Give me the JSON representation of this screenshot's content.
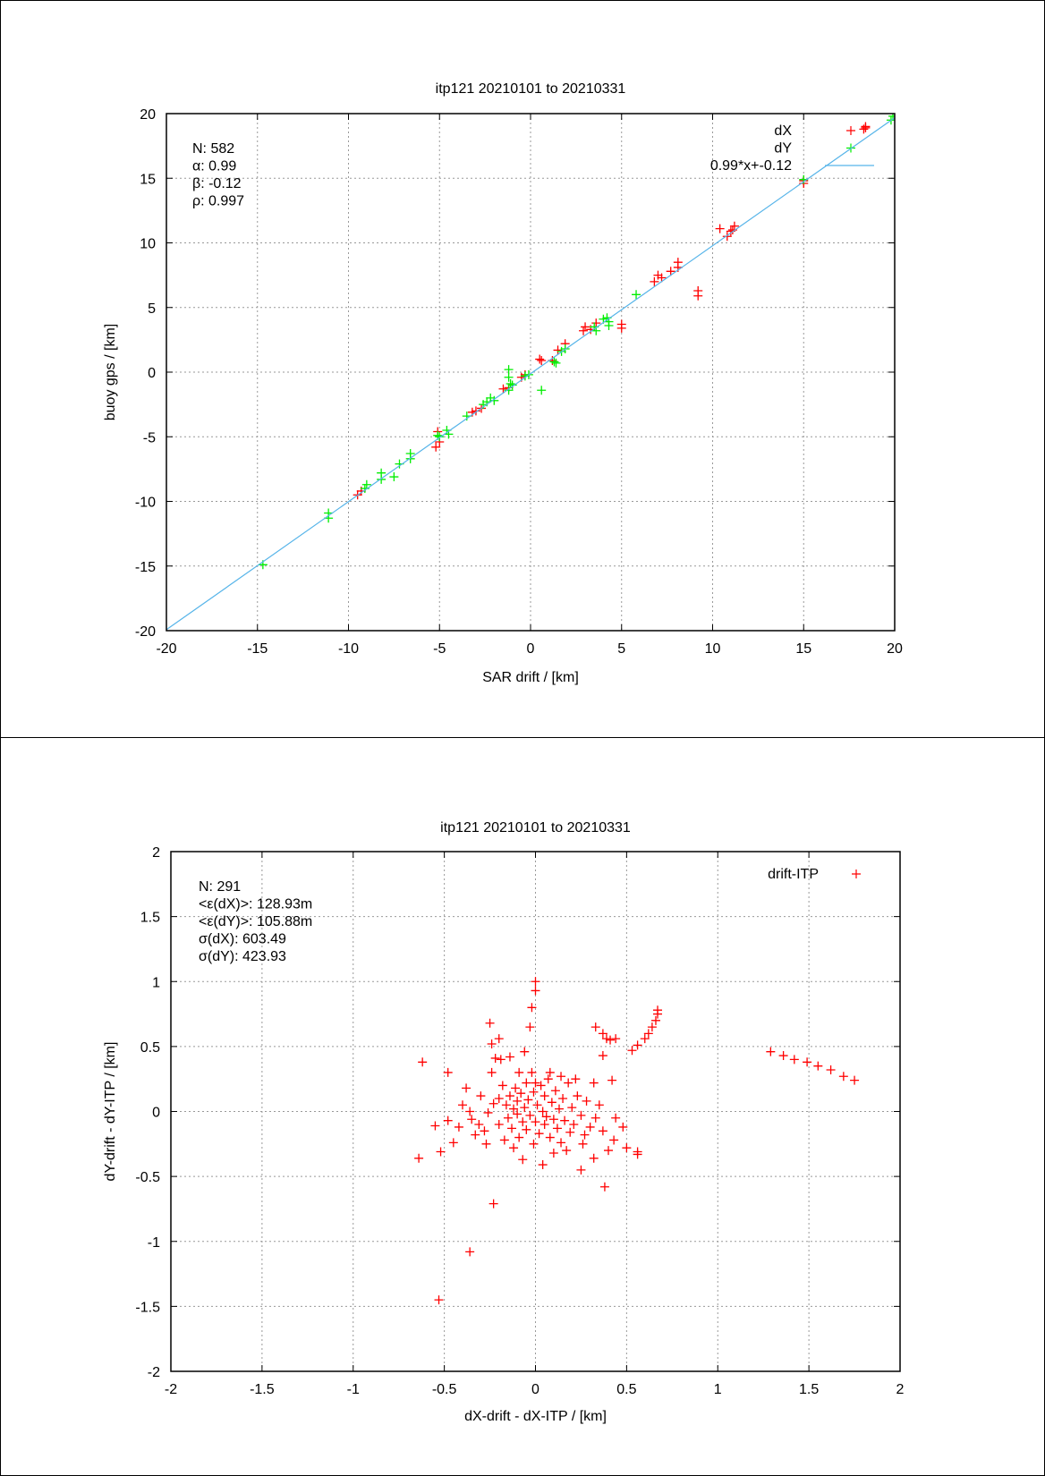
{
  "chart_data": [
    {
      "type": "scatter",
      "title": "itp121 20210101 to 20210331",
      "xlabel": "SAR drift / [km]",
      "ylabel": "buoy gps / [km]",
      "xlim": [
        -20,
        20
      ],
      "ylim": [
        -20,
        20
      ],
      "xticks": [
        -20,
        -15,
        -10,
        -5,
        0,
        5,
        10,
        15,
        20
      ],
      "yticks": [
        -20,
        -15,
        -10,
        -5,
        0,
        5,
        10,
        15,
        20
      ],
      "xtick_labels": [
        "-20",
        "-15",
        "-10",
        "-5",
        "0",
        "5",
        "10",
        "15",
        "20"
      ],
      "ytick_labels": [
        "-20",
        "-15",
        "-10",
        "-5",
        "0",
        "5",
        "10",
        "15",
        "20"
      ],
      "grid": true,
      "legend_position": "top-right",
      "stats": [
        "N: 582",
        "α: 0.99",
        "β: -0.12",
        "ρ: 0.997"
      ],
      "series": [
        {
          "name": "dX",
          "color": "#ff0000",
          "marker": "plus",
          "points": [
            [
              18.4,
              19.0
            ],
            [
              18.3,
              18.8
            ],
            [
              18.4,
              18.9
            ],
            [
              15.0,
              14.8
            ],
            [
              15.0,
              14.6
            ],
            [
              10.4,
              11.1
            ],
            [
              10.8,
              10.5
            ],
            [
              11.0,
              10.9
            ],
            [
              11.2,
              11.3
            ],
            [
              11.1,
              11.0
            ],
            [
              8.1,
              8.5
            ],
            [
              8.1,
              8.1
            ],
            [
              7.7,
              7.8
            ],
            [
              7.2,
              7.3
            ],
            [
              7.0,
              7.5
            ],
            [
              6.8,
              7.0
            ],
            [
              9.2,
              6.3
            ],
            [
              9.2,
              5.9
            ],
            [
              5.0,
              3.7
            ],
            [
              5.0,
              3.4
            ],
            [
              3.6,
              3.8
            ],
            [
              3.0,
              3.5
            ],
            [
              2.9,
              3.2
            ],
            [
              3.3,
              3.3
            ],
            [
              1.9,
              2.2
            ],
            [
              1.5,
              1.7
            ],
            [
              1.2,
              0.9
            ],
            [
              0.5,
              1.0
            ],
            [
              0.6,
              0.9
            ],
            [
              -0.3,
              -0.2
            ],
            [
              -0.5,
              -0.4
            ],
            [
              -1.2,
              -1.2
            ],
            [
              -1.5,
              -1.3
            ],
            [
              -2.7,
              -2.8
            ],
            [
              -3.0,
              -3.0
            ],
            [
              -3.2,
              -3.1
            ],
            [
              -5.1,
              -4.6
            ],
            [
              -5.2,
              -5.8
            ],
            [
              -5.0,
              -5.4
            ],
            [
              -9.3,
              -9.2
            ],
            [
              -9.5,
              -9.5
            ]
          ]
        },
        {
          "name": "dY",
          "color": "#00ee00",
          "marker": "plus",
          "points": [
            [
              19.9,
              19.8
            ],
            [
              19.8,
              19.5
            ],
            [
              15.0,
              14.9
            ],
            [
              5.8,
              6.0
            ],
            [
              4.2,
              4.2
            ],
            [
              4.3,
              3.6
            ],
            [
              4.3,
              3.9
            ],
            [
              3.5,
              3.5
            ],
            [
              3.6,
              3.2
            ],
            [
              4.0,
              4.1
            ],
            [
              1.9,
              1.8
            ],
            [
              1.7,
              1.6
            ],
            [
              1.3,
              0.8
            ],
            [
              1.4,
              0.7
            ],
            [
              0.6,
              -1.4
            ],
            [
              -0.1,
              -0.2
            ],
            [
              -0.3,
              -0.3
            ],
            [
              -1.2,
              -0.4
            ],
            [
              -1.2,
              0.2
            ],
            [
              -1.1,
              -0.9
            ],
            [
              -1.2,
              -1.4
            ],
            [
              -1.0,
              -1.0
            ],
            [
              -2.0,
              -2.2
            ],
            [
              -2.4,
              -2.3
            ],
            [
              -2.6,
              -2.5
            ],
            [
              -2.2,
              -2.0
            ],
            [
              -3.5,
              -3.4
            ],
            [
              -4.6,
              -4.5
            ],
            [
              -4.5,
              -4.8
            ],
            [
              -5.1,
              -4.9
            ],
            [
              -5.0,
              -5.0
            ],
            [
              -6.6,
              -6.3
            ],
            [
              -6.6,
              -6.7
            ],
            [
              -7.2,
              -7.1
            ],
            [
              -7.5,
              -8.1
            ],
            [
              -8.2,
              -7.8
            ],
            [
              -8.2,
              -8.3
            ],
            [
              -9.1,
              -9.0
            ],
            [
              -9.0,
              -8.7
            ],
            [
              -11.1,
              -10.9
            ],
            [
              -11.1,
              -11.3
            ],
            [
              -14.7,
              -14.9
            ]
          ]
        },
        {
          "name": "0.99*x+-0.12",
          "color": "#56b4e9",
          "type": "line",
          "slope": 0.99,
          "intercept": -0.12
        }
      ]
    },
    {
      "type": "scatter",
      "title": "itp121 20210101 to 20210331",
      "xlabel": "dX-drift - dX-ITP / [km]",
      "ylabel": "dY-drift - dY-ITP / [km]",
      "xlim": [
        -2,
        2
      ],
      "ylim": [
        -2,
        2
      ],
      "xticks": [
        -2,
        -1.5,
        -1,
        -0.5,
        0,
        0.5,
        1,
        1.5,
        2
      ],
      "yticks": [
        -2,
        -1.5,
        -1,
        -0.5,
        0,
        0.5,
        1,
        1.5,
        2
      ],
      "xtick_labels": [
        "-2",
        "-1.5",
        "-1",
        "-0.5",
        "0",
        "0.5",
        "1",
        "1.5",
        "2"
      ],
      "ytick_labels": [
        "-2",
        "-1.5",
        "-1",
        "-0.5",
        "0",
        "0.5",
        "1",
        "1.5",
        "2"
      ],
      "grid": true,
      "legend_position": "top-right",
      "stats": [
        "N: 291",
        "<ε(dX)>:  128.93m",
        "<ε(dY)>: 105.88m",
        "σ(dX):  603.49",
        "σ(dY):  423.93"
      ],
      "series": [
        {
          "name": "drift-ITP",
          "color": "#ff0000",
          "marker": "plus",
          "points": [
            [
              1.29,
              0.46
            ],
            [
              1.36,
              0.43
            ],
            [
              1.42,
              0.4
            ],
            [
              1.49,
              0.38
            ],
            [
              1.55,
              0.35
            ],
            [
              1.62,
              0.32
            ],
            [
              1.69,
              0.27
            ],
            [
              1.75,
              0.24
            ],
            [
              0.33,
              0.65
            ],
            [
              0.37,
              0.6
            ],
            [
              0.39,
              0.56
            ],
            [
              0.41,
              0.55
            ],
            [
              0.44,
              0.56
            ],
            [
              0.53,
              0.47
            ],
            [
              0.56,
              0.51
            ],
            [
              0.6,
              0.56
            ],
            [
              0.62,
              0.6
            ],
            [
              0.64,
              0.65
            ],
            [
              0.66,
              0.7
            ],
            [
              0.67,
              0.75
            ],
            [
              0.67,
              0.78
            ],
            [
              0.0,
              1.0
            ],
            [
              0.0,
              0.93
            ],
            [
              -0.02,
              0.8
            ],
            [
              -0.03,
              0.65
            ],
            [
              -0.06,
              0.46
            ],
            [
              -0.25,
              0.68
            ],
            [
              -0.24,
              0.52
            ],
            [
              -0.2,
              0.56
            ],
            [
              -0.22,
              0.41
            ],
            [
              -0.14,
              0.42
            ],
            [
              -0.19,
              0.4
            ],
            [
              -0.62,
              0.38
            ],
            [
              -0.48,
              0.3
            ],
            [
              -0.64,
              -0.36
            ],
            [
              -0.52,
              -0.31
            ],
            [
              -0.55,
              -0.11
            ],
            [
              -0.48,
              -0.07
            ],
            [
              -0.45,
              -0.24
            ],
            [
              -0.23,
              -0.71
            ],
            [
              -0.36,
              -1.08
            ],
            [
              -0.53,
              -1.45
            ],
            [
              0.38,
              -0.58
            ],
            [
              0.25,
              -0.45
            ],
            [
              0.56,
              -0.31
            ],
            [
              0.56,
              -0.33
            ],
            [
              0.43,
              -0.22
            ],
            [
              0.42,
              0.24
            ],
            [
              0.37,
              0.43
            ],
            [
              -0.07,
              -0.37
            ],
            [
              0.04,
              -0.41
            ],
            [
              0.1,
              -0.32
            ],
            [
              -0.38,
              0.18
            ],
            [
              -0.36,
              0.0
            ],
            [
              -0.33,
              -0.18
            ],
            [
              -0.35,
              -0.06
            ],
            [
              -0.31,
              -0.1
            ],
            [
              -0.28,
              -0.15
            ],
            [
              -0.26,
              -0.01
            ],
            [
              -0.23,
              0.06
            ],
            [
              -0.2,
              -0.1
            ],
            [
              -0.2,
              0.1
            ],
            [
              -0.18,
              0.2
            ],
            [
              -0.16,
              0.05
            ],
            [
              -0.15,
              -0.05
            ],
            [
              -0.14,
              0.12
            ],
            [
              -0.13,
              -0.13
            ],
            [
              -0.12,
              0.02
            ],
            [
              -0.11,
              0.18
            ],
            [
              -0.1,
              -0.02
            ],
            [
              -0.1,
              0.08
            ],
            [
              -0.09,
              -0.2
            ],
            [
              -0.08,
              0.14
            ],
            [
              -0.07,
              -0.08
            ],
            [
              -0.06,
              0.03
            ],
            [
              -0.05,
              0.22
            ],
            [
              -0.05,
              -0.14
            ],
            [
              -0.04,
              0.09
            ],
            [
              -0.03,
              -0.03
            ],
            [
              -0.02,
              0.3
            ],
            [
              -0.01,
              0.15
            ],
            [
              0.0,
              -0.08
            ],
            [
              0.01,
              0.05
            ],
            [
              0.02,
              -0.17
            ],
            [
              0.03,
              0.2
            ],
            [
              0.04,
              0.0
            ],
            [
              0.05,
              -0.1
            ],
            [
              0.05,
              0.12
            ],
            [
              0.06,
              -0.04
            ],
            [
              0.07,
              0.25
            ],
            [
              0.08,
              -0.2
            ],
            [
              0.09,
              0.07
            ],
            [
              0.1,
              -0.06
            ],
            [
              0.11,
              0.16
            ],
            [
              0.12,
              -0.13
            ],
            [
              0.13,
              0.02
            ],
            [
              0.14,
              -0.24
            ],
            [
              0.15,
              0.1
            ],
            [
              0.16,
              -0.07
            ],
            [
              0.18,
              0.22
            ],
            [
              0.19,
              -0.16
            ],
            [
              0.2,
              0.03
            ],
            [
              0.21,
              -0.1
            ],
            [
              0.23,
              0.12
            ],
            [
              0.25,
              -0.03
            ],
            [
              0.27,
              -0.18
            ],
            [
              0.28,
              0.08
            ],
            [
              0.3,
              -0.12
            ],
            [
              0.33,
              -0.05
            ],
            [
              0.35,
              0.05
            ],
            [
              0.37,
              -0.15
            ],
            [
              0.4,
              -0.3
            ],
            [
              -0.42,
              -0.12
            ],
            [
              -0.4,
              0.05
            ],
            [
              -0.3,
              0.12
            ],
            [
              -0.27,
              -0.25
            ],
            [
              -0.17,
              -0.22
            ],
            [
              -0.12,
              -0.28
            ],
            [
              0.0,
              0.22
            ],
            [
              0.08,
              0.3
            ],
            [
              0.17,
              -0.3
            ],
            [
              0.26,
              -0.25
            ],
            [
              0.32,
              0.22
            ],
            [
              0.22,
              0.25
            ],
            [
              -0.09,
              0.3
            ],
            [
              -0.24,
              0.3
            ],
            [
              0.44,
              -0.05
            ],
            [
              0.48,
              -0.12
            ],
            [
              0.5,
              -0.28
            ],
            [
              0.32,
              -0.36
            ],
            [
              0.14,
              0.27
            ],
            [
              -0.01,
              -0.25
            ]
          ]
        }
      ]
    }
  ]
}
